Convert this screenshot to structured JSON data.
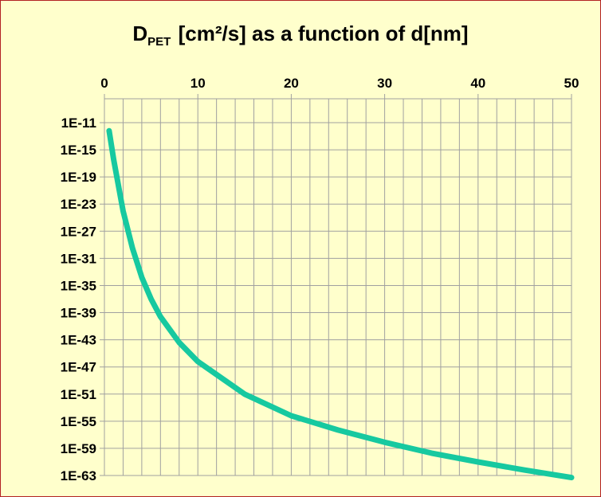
{
  "title": {
    "main": "D",
    "subscript": "PET",
    "rest": " [cm²/s] as a function of d[nm]"
  },
  "colors": {
    "background": "#FFFFCC",
    "border": "#B22222",
    "grid": "#A0A0A0",
    "line": "#17C9A0"
  },
  "chart_data": {
    "type": "line",
    "xlim": [
      0,
      50
    ],
    "x_ticks": [
      0,
      10,
      20,
      30,
      40,
      50
    ],
    "x_tick_labels": [
      "0",
      "10",
      "20",
      "30",
      "40",
      "50"
    ],
    "x_axis_position": "top",
    "y_scale": "log",
    "ylim_exponent": [
      -63,
      -11
    ],
    "y_ticks_exponent": [
      -11,
      -15,
      -19,
      -23,
      -27,
      -31,
      -35,
      -39,
      -43,
      -47,
      -51,
      -55,
      -59,
      -63
    ],
    "y_tick_labels": [
      "1E-11",
      "1E-15",
      "1E-19",
      "1E-23",
      "1E-27",
      "1E-31",
      "1E-35",
      "1E-39",
      "1E-43",
      "1E-47",
      "1E-51",
      "1E-55",
      "1E-59",
      "1E-63"
    ],
    "grid": true,
    "series": [
      {
        "x": [
          0.5,
          1,
          2,
          3,
          4,
          5,
          6,
          8,
          10,
          15,
          20,
          25,
          30,
          35,
          40,
          45,
          50
        ],
        "y_exponent": [
          -12.2,
          -16.5,
          -24,
          -29.5,
          -33.8,
          -37,
          -39.6,
          -43.4,
          -46.2,
          -51,
          -54.2,
          -56.3,
          -58.1,
          -59.7,
          -61,
          -62.2,
          -63.3
        ]
      }
    ]
  }
}
